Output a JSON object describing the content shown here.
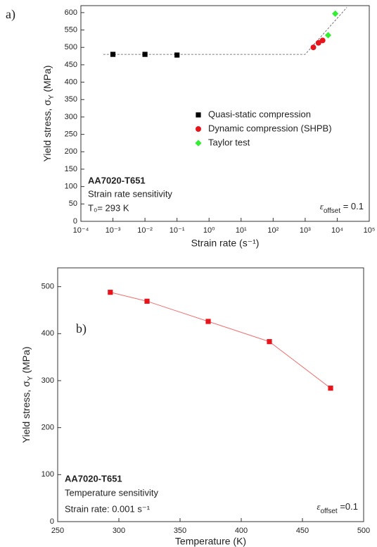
{
  "chart_data": [
    {
      "type": "scatter",
      "panel_label": "a)",
      "x_label": "Strain rate (s⁻¹)",
      "y_label": {
        "main": "Yield stress, σ",
        "sub": "Y",
        "unit": " (MPa)"
      },
      "xscale": "log",
      "xlim": [
        0.0001,
        100000
      ],
      "xticks": [
        {
          "value": 0.0001,
          "label": "10⁻⁴"
        },
        {
          "value": 0.001,
          "label": "10⁻³"
        },
        {
          "value": 0.01,
          "label": "10⁻²"
        },
        {
          "value": 0.1,
          "label": "10⁻¹"
        },
        {
          "value": 1,
          "label": "10⁰"
        },
        {
          "value": 10,
          "label": "10¹"
        },
        {
          "value": 100,
          "label": "10²"
        },
        {
          "value": 1000,
          "label": "10³"
        },
        {
          "value": 10000,
          "label": "10⁴"
        },
        {
          "value": 100000,
          "label": "10⁵"
        }
      ],
      "ylim": [
        0,
        620
      ],
      "yticks": [
        0,
        50,
        100,
        150,
        200,
        250,
        300,
        350,
        400,
        450,
        500,
        550,
        600
      ],
      "series": [
        {
          "name": "Quasi-static compression",
          "color": "#000000",
          "marker": "square",
          "x": [
            0.001,
            0.01,
            0.1
          ],
          "values": [
            480,
            480,
            478
          ]
        },
        {
          "name": "Dynamic compression (SHPB)",
          "color": "#e8141b",
          "marker": "circle",
          "x": [
            1800,
            2600,
            3500
          ],
          "values": [
            500,
            513,
            520
          ]
        },
        {
          "name": "Taylor test",
          "color": "#33ee33",
          "marker": "diamond",
          "x": [
            5200,
            8700
          ],
          "values": [
            535,
            597
          ]
        }
      ],
      "fit_line": {
        "color": "#555555",
        "x": [
          0.0005,
          1000,
          20000
        ],
        "y": [
          480,
          480,
          615
        ]
      },
      "legend": true,
      "annotations": [
        {
          "text": "AA7020-T651",
          "bold": true
        },
        {
          "text": "Strain rate sensitivity",
          "bold": false
        },
        {
          "text": "T₀= 293 K",
          "bold": false
        }
      ],
      "strain_note": {
        "symbol": "ε",
        "sub": "offset",
        "rest": " = 0.1"
      }
    },
    {
      "type": "line",
      "panel_label": "b)",
      "x_label": "Temperature (K)",
      "y_label": {
        "main": "Yield stress, σ",
        "sub": "Y",
        "unit": " (MPa)"
      },
      "xscale": "linear",
      "xlim": [
        250,
        500
      ],
      "xticks": [
        250,
        300,
        350,
        400,
        450,
        500
      ],
      "ylim": [
        0,
        540
      ],
      "yticks": [
        0,
        100,
        200,
        300,
        400,
        500
      ],
      "series": [
        {
          "color": "#e8141b",
          "line_color": "#f07070",
          "marker": "square",
          "x": [
            293,
            323,
            373,
            423,
            473
          ],
          "values": [
            488,
            469,
            426,
            383,
            284
          ]
        }
      ],
      "legend": false,
      "annotations": [
        {
          "text": "AA7020-T651",
          "bold": true
        },
        {
          "text": "Temperature sensitivity",
          "bold": false
        },
        {
          "text": "Strain rate: 0.001 s⁻¹",
          "bold": false
        }
      ],
      "strain_note": {
        "symbol": "ε",
        "sub": "offset",
        "rest": " =0.1"
      }
    }
  ]
}
